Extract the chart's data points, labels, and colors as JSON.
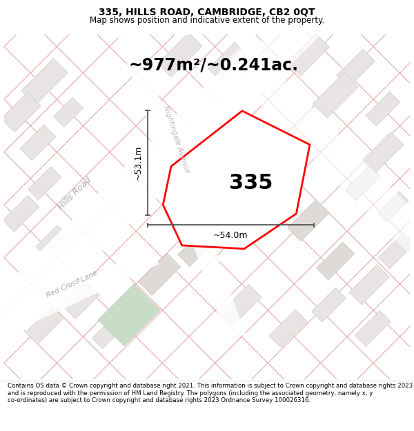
{
  "title_line1": "335, HILLS ROAD, CAMBRIDGE, CB2 0QT",
  "title_line2": "Map shows position and indicative extent of the property.",
  "area_text": "~977m²/~0.241ac.",
  "number_label": "335",
  "dim_height": "~53.1m",
  "dim_width": "~54.0m",
  "road_label1": "Hills Road",
  "road_label2": "Nightingale Avenue",
  "road_label3": "Red Cross Lane",
  "footer_text": "Contains OS data © Crown copyright and database right 2021. This information is subject to Crown copyright and database rights 2023 and is reproduced with the permission of HM Land Registry. The polygons (including the associated geometry, namely x, y co-ordinates) are subject to Crown copyright and database rights 2023 Ordnance Survey 100026316.",
  "title_fontsize": 10,
  "subtitle_fontsize": 8.5,
  "area_fontsize": 17,
  "number_fontsize": 22,
  "dim_fontsize": 9,
  "road_fontsize1": 9,
  "road_fontsize2": 7.5,
  "road_fontsize3": 7.5,
  "footer_fontsize": 6.2,
  "map_bg": "#f0eeee",
  "plot_color": "#ff0000",
  "dim_color": "#555555",
  "road_line_color": "#e8a8a8",
  "block_color_light": "#e8e4e4",
  "block_color_mid": "#dedad8",
  "block_edge_color": "#d0ccc8",
  "green_color": "#c8dcc8",
  "green_edge": "#b8ccb8",
  "road_label_color": "#aaaaaa",
  "white": "#ffffff"
}
